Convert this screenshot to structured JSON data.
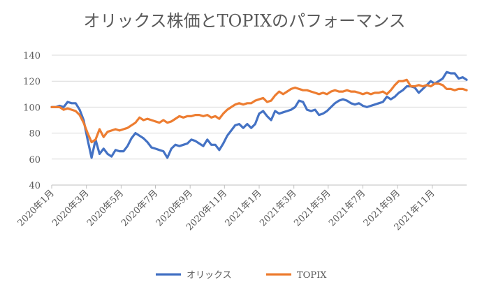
{
  "chart_data": {
    "type": "line",
    "title": "オリックス株価とTOPIXのパフォーマンス",
    "xlabel": "",
    "ylabel": "",
    "ylim": [
      40,
      140
    ],
    "yticks": [
      40,
      60,
      80,
      100,
      120,
      140
    ],
    "x_tick_labels": [
      "2020年1月",
      "2020年3月",
      "2020年5月",
      "2020年7月",
      "2020年9月",
      "2020年11月",
      "2021年1月",
      "2021年3月",
      "2021年5月",
      "2021年7月",
      "2021年9月",
      "2021年11月"
    ],
    "x_tick_weeks": [
      0,
      8.7,
      17.4,
      26,
      34.7,
      43.3,
      52,
      60.7,
      69.3,
      78,
      86.7,
      95.4
    ],
    "x_range_weeks": [
      0,
      104
    ],
    "grid": true,
    "legend_position": "bottom",
    "series": [
      {
        "name": "オリックス",
        "color": "#4472c4",
        "values": [
          100,
          100,
          101,
          100,
          104,
          103,
          103,
          98,
          90,
          75,
          61,
          75,
          64,
          68,
          64,
          62,
          67,
          66,
          66,
          70,
          76,
          80,
          78,
          76,
          73,
          69,
          68,
          67,
          66,
          61,
          68,
          71,
          70,
          71,
          72,
          75,
          74,
          72,
          70,
          75,
          71,
          71,
          67,
          72,
          78,
          82,
          86,
          87,
          84,
          87,
          84,
          87,
          95,
          97,
          93,
          90,
          97,
          95,
          96,
          97,
          98,
          100,
          105,
          104,
          98,
          97,
          98,
          94,
          95,
          97,
          100,
          103,
          105,
          106,
          105,
          103,
          102,
          103,
          101,
          100,
          101,
          102,
          103,
          104,
          108,
          106,
          108,
          111,
          113,
          116,
          116,
          115,
          111,
          114,
          117,
          120,
          118,
          120,
          122,
          127,
          126,
          126,
          122,
          123,
          121
        ],
        "x_start": 0,
        "x_step": 1
      },
      {
        "name": "TOPIX",
        "color": "#ed7d31",
        "values": [
          100,
          100,
          100,
          98,
          99,
          98,
          97,
          94,
          88,
          80,
          73,
          75,
          83,
          77,
          81,
          82,
          83,
          82,
          83,
          84,
          86,
          88,
          92,
          90,
          91,
          90,
          89,
          88,
          90,
          88,
          89,
          91,
          93,
          92,
          93,
          93,
          94,
          94,
          93,
          94,
          92,
          93,
          91,
          95,
          98,
          100,
          102,
          103,
          102,
          103,
          103,
          105,
          106,
          107,
          104,
          105,
          109,
          112,
          110,
          112,
          114,
          115,
          114,
          113,
          113,
          112,
          111,
          110,
          111,
          110,
          112,
          113,
          112,
          112,
          113,
          112,
          112,
          111,
          110,
          111,
          110,
          111,
          111,
          112,
          110,
          113,
          117,
          120,
          120,
          121,
          116,
          116,
          117,
          116,
          117,
          116,
          118,
          118,
          117,
          114,
          114,
          113,
          114,
          114,
          113
        ],
        "x_start": 0,
        "x_step": 1
      }
    ]
  }
}
